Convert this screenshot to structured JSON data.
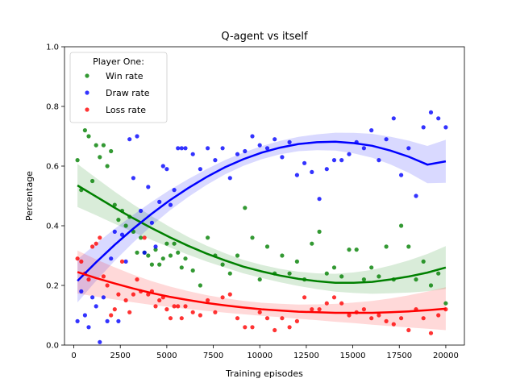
{
  "chart_data": {
    "type": "scatter",
    "title": "Q-agent vs itself",
    "xlabel": "Training episodes",
    "ylabel": "Percentage",
    "xlim": [
      -500,
      21000
    ],
    "ylim": [
      0.0,
      1.0
    ],
    "xticks": [
      0,
      2500,
      5000,
      7500,
      10000,
      12500,
      15000,
      17500,
      20000
    ],
    "yticks": [
      0.0,
      0.2,
      0.4,
      0.6,
      0.8,
      1.0
    ],
    "legend": {
      "title": "Player One:",
      "placement": "top-left",
      "entries": [
        "Win rate",
        "Draw rate",
        "Loss rate"
      ]
    },
    "series": [
      {
        "name": "Win rate",
        "color": "#008000",
        "x": [
          200,
          400,
          600,
          800,
          1000,
          1200,
          1400,
          1600,
          1800,
          2000,
          2200,
          2400,
          2600,
          2800,
          3000,
          3200,
          3400,
          3600,
          3800,
          4000,
          4200,
          4400,
          4600,
          4800,
          5000,
          5200,
          5400,
          5600,
          5800,
          6000,
          6400,
          6800,
          7200,
          7600,
          8000,
          8400,
          8800,
          9200,
          9600,
          10000,
          10400,
          10800,
          11200,
          11600,
          12000,
          12400,
          12800,
          13200,
          13600,
          14000,
          14400,
          14800,
          15200,
          15600,
          16000,
          16400,
          16800,
          17200,
          17600,
          18000,
          18400,
          18800,
          19200,
          19600,
          20000
        ],
        "y": [
          0.62,
          0.52,
          0.72,
          0.7,
          0.55,
          0.67,
          0.63,
          0.67,
          0.6,
          0.65,
          0.47,
          0.42,
          0.45,
          0.4,
          0.43,
          0.38,
          0.31,
          0.36,
          0.31,
          0.3,
          0.27,
          0.32,
          0.27,
          0.29,
          0.34,
          0.3,
          0.34,
          0.31,
          0.26,
          0.29,
          0.25,
          0.2,
          0.36,
          0.3,
          0.27,
          0.24,
          0.3,
          0.46,
          0.36,
          0.22,
          0.33,
          0.24,
          0.3,
          0.24,
          0.28,
          0.22,
          0.34,
          0.38,
          0.24,
          0.26,
          0.23,
          0.32,
          0.32,
          0.22,
          0.26,
          0.23,
          0.33,
          0.22,
          0.4,
          0.33,
          0.22,
          0.28,
          0.2,
          0.24,
          0.14
        ],
        "fit": [
          0.535,
          0.498,
          0.461,
          0.426,
          0.393,
          0.362,
          0.333,
          0.307,
          0.284,
          0.263,
          0.247,
          0.233,
          0.222,
          0.214,
          0.209,
          0.209,
          0.212,
          0.22,
          0.23,
          0.243,
          0.26
        ]
      },
      {
        "name": "Draw rate",
        "color": "#0000ff",
        "x": [
          200,
          400,
          600,
          800,
          1000,
          1200,
          1400,
          1600,
          1800,
          2000,
          2200,
          2400,
          2600,
          2800,
          3000,
          3200,
          3400,
          3600,
          3800,
          4000,
          4200,
          4400,
          4600,
          4800,
          5000,
          5200,
          5400,
          5600,
          5800,
          6000,
          6400,
          6800,
          7200,
          7600,
          8000,
          8400,
          8800,
          9200,
          9600,
          10000,
          10400,
          10800,
          11200,
          11600,
          12000,
          12400,
          12800,
          13200,
          13600,
          14000,
          14400,
          14800,
          15200,
          15600,
          16000,
          16400,
          16800,
          17200,
          17600,
          18000,
          18400,
          18800,
          19200,
          19600,
          20000
        ],
        "y": [
          0.08,
          0.18,
          0.1,
          0.06,
          0.16,
          0.13,
          0.01,
          0.16,
          0.08,
          0.29,
          0.38,
          0.08,
          0.37,
          0.28,
          0.69,
          0.56,
          0.7,
          0.45,
          0.31,
          0.53,
          0.41,
          0.33,
          0.48,
          0.6,
          0.59,
          0.47,
          0.52,
          0.66,
          0.66,
          0.66,
          0.64,
          0.59,
          0.66,
          0.62,
          0.66,
          0.56,
          0.64,
          0.65,
          0.7,
          0.67,
          0.66,
          0.69,
          0.63,
          0.68,
          0.57,
          0.61,
          0.58,
          0.49,
          0.59,
          0.62,
          0.62,
          0.64,
          0.68,
          0.66,
          0.72,
          0.62,
          0.69,
          0.76,
          0.57,
          0.66,
          0.5,
          0.73,
          0.78,
          0.76,
          0.73
        ],
        "fit": [
          0.215,
          0.277,
          0.335,
          0.389,
          0.439,
          0.485,
          0.526,
          0.563,
          0.596,
          0.623,
          0.645,
          0.662,
          0.674,
          0.68,
          0.682,
          0.677,
          0.668,
          0.652,
          0.631,
          0.605,
          0.616
        ]
      },
      {
        "name": "Loss rate",
        "color": "#ff0000",
        "x": [
          200,
          400,
          600,
          800,
          1000,
          1200,
          1400,
          1600,
          1800,
          2000,
          2200,
          2400,
          2600,
          2800,
          3000,
          3200,
          3400,
          3600,
          3800,
          4000,
          4200,
          4400,
          4600,
          4800,
          5000,
          5200,
          5400,
          5600,
          5800,
          6000,
          6400,
          6800,
          7200,
          7600,
          8000,
          8400,
          8800,
          9200,
          9600,
          10000,
          10400,
          10800,
          11200,
          11600,
          12000,
          12400,
          12800,
          13200,
          13600,
          14000,
          14400,
          14800,
          15200,
          15600,
          16000,
          16400,
          16800,
          17200,
          17600,
          18000,
          18400,
          18800,
          19200,
          19600,
          20000
        ],
        "y": [
          0.29,
          0.28,
          0.24,
          0.22,
          0.33,
          0.34,
          0.36,
          0.23,
          0.2,
          0.1,
          0.12,
          0.17,
          0.28,
          0.15,
          0.11,
          0.17,
          0.22,
          0.18,
          0.36,
          0.17,
          0.18,
          0.13,
          0.15,
          0.16,
          0.12,
          0.09,
          0.13,
          0.13,
          0.09,
          0.13,
          0.11,
          0.1,
          0.15,
          0.11,
          0.16,
          0.17,
          0.09,
          0.06,
          0.06,
          0.11,
          0.09,
          0.05,
          0.09,
          0.06,
          0.08,
          0.16,
          0.12,
          0.12,
          0.14,
          0.16,
          0.14,
          0.1,
          0.11,
          0.12,
          0.09,
          0.1,
          0.08,
          0.07,
          0.09,
          0.05,
          0.12,
          0.09,
          0.04,
          0.1,
          0.12
        ],
        "fit": [
          0.245,
          0.225,
          0.207,
          0.19,
          0.175,
          0.162,
          0.151,
          0.141,
          0.133,
          0.126,
          0.12,
          0.116,
          0.112,
          0.11,
          0.108,
          0.108,
          0.108,
          0.11,
          0.113,
          0.117,
          0.122
        ]
      }
    ]
  }
}
